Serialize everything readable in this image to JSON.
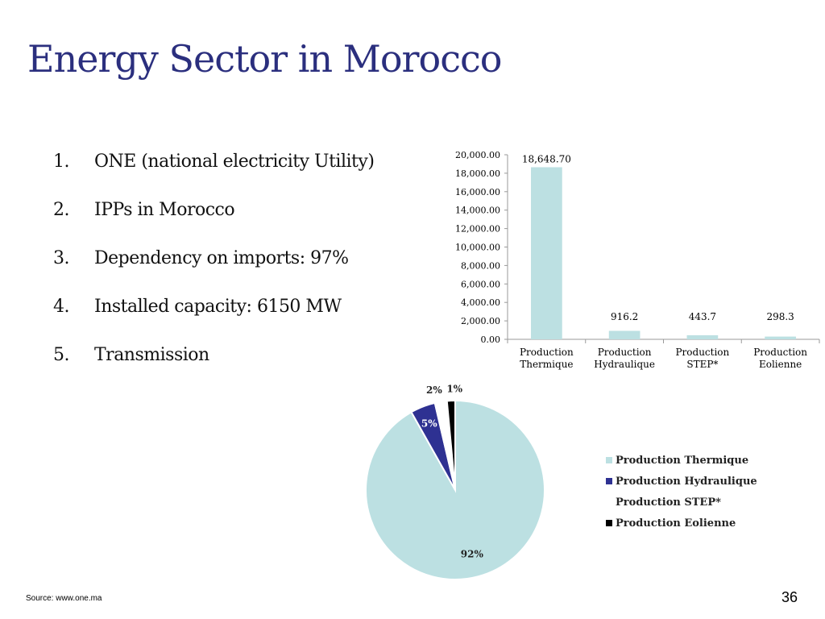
{
  "slide": {
    "title": "Energy Sector in Morocco",
    "source": "Source: www.one.ma",
    "page_number": "36"
  },
  "list": {
    "items": [
      {
        "num": "1.",
        "text": "ONE (national electricity Utility)"
      },
      {
        "num": "2.",
        "text": "IPPs in Morocco"
      },
      {
        "num": "3.",
        "text": "Dependency on imports: 97%"
      },
      {
        "num": "4.",
        "text": "Installed capacity: 6150 MW"
      },
      {
        "num": "5.",
        "text": "Transmission"
      }
    ]
  },
  "chart_data": [
    {
      "type": "bar",
      "categories": [
        "Production Thermique",
        "Production Hydraulique",
        "Production STEP*",
        "Production Eolienne"
      ],
      "values": [
        18648.7,
        916.2,
        443.7,
        298.3
      ],
      "data_labels": [
        "18,648.70",
        "916.2",
        "443.7",
        "298.3"
      ],
      "yticks": [
        "0.00",
        "2,000.00",
        "4,000.00",
        "6,000.00",
        "8,000.00",
        "10,000.00",
        "12,000.00",
        "14,000.00",
        "16,000.00",
        "18,000.00",
        "20,000.00"
      ],
      "ylim": [
        0,
        20000
      ],
      "grid": false,
      "color": "#BCE0E2"
    },
    {
      "type": "pie",
      "categories": [
        "Production Thermique",
        "Production Hydraulique",
        "Production STEP*",
        "Production Eolienne"
      ],
      "values": [
        18648.7,
        916.2,
        443.7,
        298.3
      ],
      "data_labels": [
        "92%",
        "5%",
        "2%",
        "1%"
      ],
      "colors": [
        "#BCE0E2",
        "#2E3192",
        "#FFFFFF",
        "#000000"
      ],
      "legend_position": "right"
    }
  ]
}
